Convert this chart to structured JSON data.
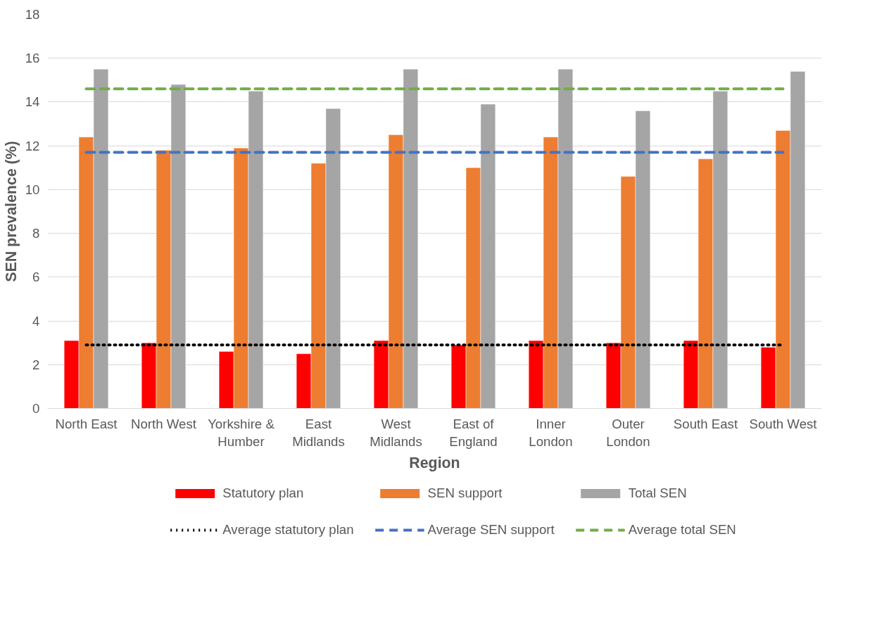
{
  "chart_data": {
    "type": "bar",
    "xlabel": "Region",
    "ylabel": "SEN prevalence (%)",
    "categories": [
      "North East",
      "North West",
      "Yorkshire & Humber",
      "East Midlands",
      "West Midlands",
      "East of England",
      "Inner London",
      "Outer London",
      "South East",
      "South West"
    ],
    "series": [
      {
        "name": "Statutory plan",
        "color": "#ff0000",
        "values": [
          3.1,
          3.0,
          2.6,
          2.5,
          3.1,
          2.9,
          3.1,
          3.0,
          3.1,
          2.8
        ]
      },
      {
        "name": "SEN support",
        "color": "#ed7d31",
        "values": [
          12.4,
          11.8,
          11.9,
          11.2,
          12.5,
          11.0,
          12.4,
          10.6,
          11.4,
          12.7
        ]
      },
      {
        "name": "Total SEN",
        "color": "#a5a5a5",
        "values": [
          15.5,
          14.8,
          14.5,
          13.7,
          15.5,
          13.9,
          15.5,
          13.6,
          14.5,
          15.4
        ]
      },
      {
        "name": "Average statutory plan",
        "type": "line",
        "line_style": "dotted",
        "color": "#000000",
        "values": [
          2.9,
          2.9,
          2.9,
          2.9,
          2.9,
          2.9,
          2.9,
          2.9,
          2.9,
          2.9
        ]
      },
      {
        "name": "Average SEN support",
        "type": "line",
        "line_style": "dashed",
        "color": "#4472c4",
        "values": [
          11.7,
          11.7,
          11.7,
          11.7,
          11.7,
          11.7,
          11.7,
          11.7,
          11.7,
          11.7
        ]
      },
      {
        "name": "Average total SEN",
        "type": "line",
        "line_style": "dashed",
        "color": "#70ad47",
        "values": [
          14.6,
          14.6,
          14.6,
          14.6,
          14.6,
          14.6,
          14.6,
          14.6,
          14.6,
          14.6
        ]
      }
    ],
    "ylim": [
      0,
      18
    ],
    "yticks": [
      0,
      2,
      4,
      6,
      8,
      10,
      12,
      14,
      16,
      18
    ],
    "grid": "y",
    "legend": "bottom",
    "marker": "none"
  }
}
